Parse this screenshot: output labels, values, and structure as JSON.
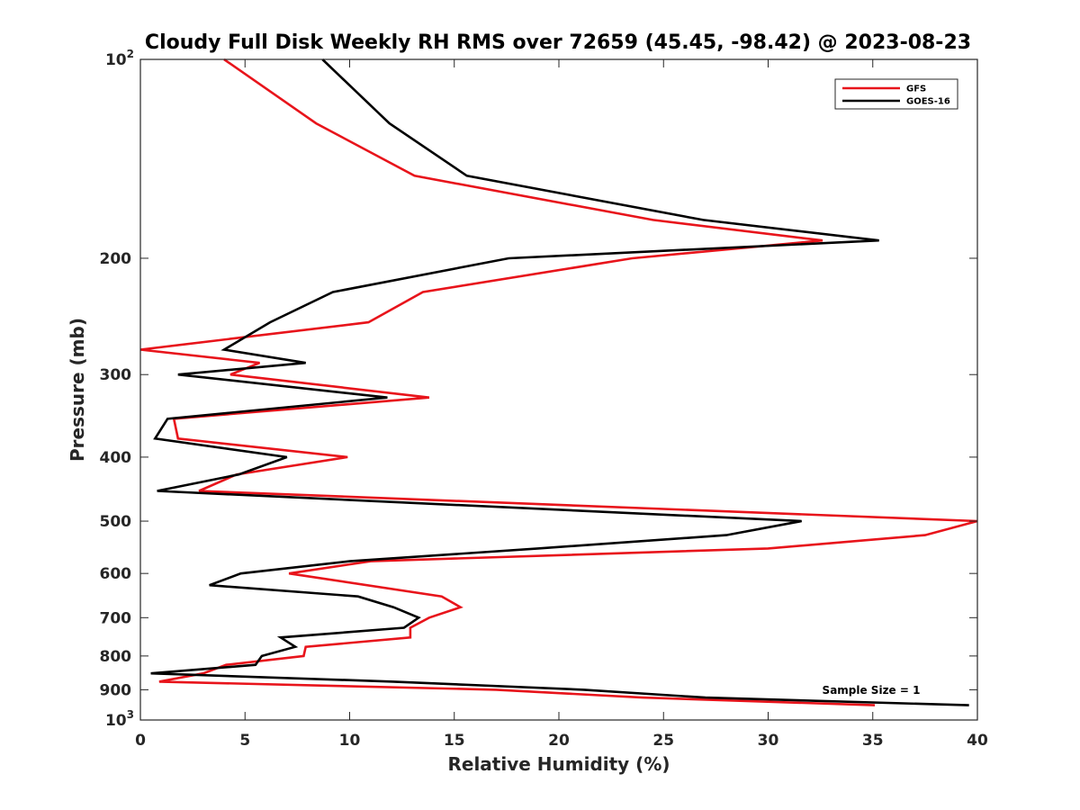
{
  "chart_data": {
    "type": "line",
    "title": "Cloudy Full Disk Weekly RH RMS over 72659 (45.45, -98.42) @ 2023-08-23",
    "xlabel": "Relative Humidity (%)",
    "ylabel": "Pressure (mb)",
    "xlim": [
      0,
      40
    ],
    "ylim": [
      100,
      1000
    ],
    "y_scale": "log",
    "y_reversed": true,
    "xticks": [
      0,
      5,
      10,
      15,
      20,
      25,
      30,
      35,
      40
    ],
    "yticks": [
      {
        "value": 100,
        "base": "10",
        "exp": "2"
      },
      {
        "value": 200,
        "label": "200"
      },
      {
        "value": 300,
        "label": "300"
      },
      {
        "value": 400,
        "label": "400"
      },
      {
        "value": 500,
        "label": "500"
      },
      {
        "value": 600,
        "label": "600"
      },
      {
        "value": 700,
        "label": "700"
      },
      {
        "value": 800,
        "label": "800"
      },
      {
        "value": 900,
        "label": "900"
      },
      {
        "value": 1000,
        "base": "10",
        "exp": "3"
      }
    ],
    "grid": false,
    "legend_position": "top-right",
    "annotation": "Sample Size = 1",
    "series": [
      {
        "name": "GFS",
        "color": "#e8141b",
        "points": [
          [
            4.0,
            100
          ],
          [
            8.4,
            125
          ],
          [
            13.1,
            150
          ],
          [
            24.5,
            175
          ],
          [
            32.6,
            188
          ],
          [
            23.5,
            200
          ],
          [
            13.5,
            225
          ],
          [
            10.9,
            250
          ],
          [
            0.0,
            275
          ],
          [
            5.7,
            288
          ],
          [
            4.3,
            300
          ],
          [
            13.8,
            325
          ],
          [
            1.6,
            350
          ],
          [
            1.8,
            375
          ],
          [
            9.9,
            400
          ],
          [
            4.6,
            425
          ],
          [
            2.8,
            450
          ],
          [
            40.0,
            500
          ],
          [
            37.5,
            525
          ],
          [
            30.0,
            550
          ],
          [
            11.0,
            575
          ],
          [
            7.1,
            600
          ],
          [
            14.4,
            650
          ],
          [
            15.3,
            675
          ],
          [
            13.8,
            700
          ],
          [
            12.9,
            725
          ],
          [
            12.9,
            750
          ],
          [
            7.9,
            775
          ],
          [
            7.8,
            800
          ],
          [
            4.1,
            825
          ],
          [
            3.0,
            850
          ],
          [
            0.9,
            875
          ],
          [
            17.0,
            900
          ],
          [
            24.0,
            925
          ],
          [
            35.1,
            950
          ]
        ]
      },
      {
        "name": "GOES-16",
        "color": "#000000",
        "points": [
          [
            8.7,
            100
          ],
          [
            11.9,
            125
          ],
          [
            15.6,
            150
          ],
          [
            26.9,
            175
          ],
          [
            35.3,
            188
          ],
          [
            17.6,
            200
          ],
          [
            9.2,
            225
          ],
          [
            6.2,
            250
          ],
          [
            4.0,
            275
          ],
          [
            7.9,
            288
          ],
          [
            1.8,
            300
          ],
          [
            11.8,
            325
          ],
          [
            1.3,
            350
          ],
          [
            0.7,
            375
          ],
          [
            7.0,
            400
          ],
          [
            4.7,
            425
          ],
          [
            0.8,
            450
          ],
          [
            31.6,
            500
          ],
          [
            28.0,
            525
          ],
          [
            19.0,
            550
          ],
          [
            10.0,
            575
          ],
          [
            4.8,
            600
          ],
          [
            3.3,
            625
          ],
          [
            10.4,
            650
          ],
          [
            12.1,
            675
          ],
          [
            13.3,
            700
          ],
          [
            12.6,
            725
          ],
          [
            6.7,
            750
          ],
          [
            7.4,
            775
          ],
          [
            5.8,
            800
          ],
          [
            5.5,
            825
          ],
          [
            0.5,
            850
          ],
          [
            12.1,
            875
          ],
          [
            21.2,
            900
          ],
          [
            27.0,
            925
          ],
          [
            39.6,
            950
          ]
        ]
      }
    ]
  }
}
